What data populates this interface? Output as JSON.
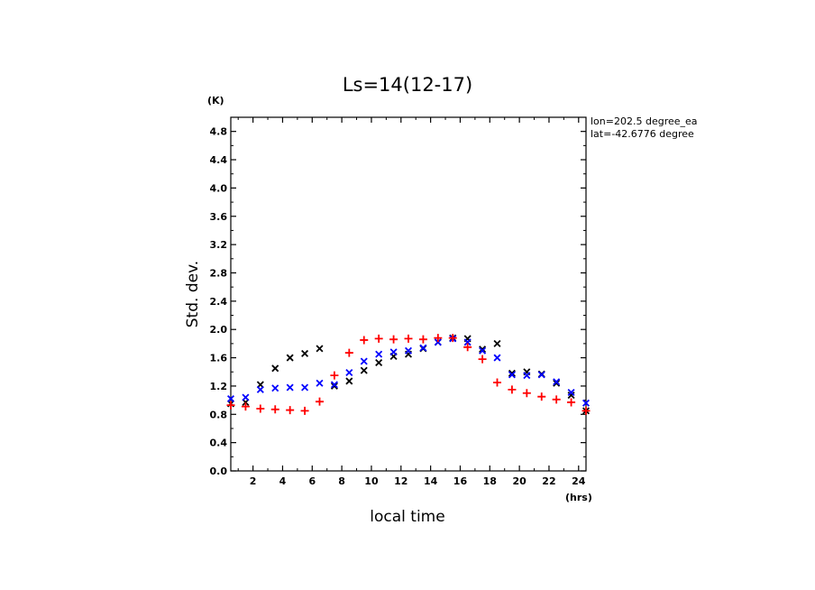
{
  "chart_data": {
    "type": "scatter",
    "title": "Ls=14(12-17)",
    "xlabel": "local time",
    "ylabel": "Std. dev.",
    "x_unit": "(hrs)",
    "y_unit": "(K)",
    "annotations": [
      "lon=202.5 degree_ea",
      "lat=-42.6776 degree"
    ],
    "xlim": [
      0.5,
      24.5
    ],
    "ylim": [
      0.0,
      5.0
    ],
    "x_ticks": [
      2,
      4,
      6,
      8,
      10,
      12,
      14,
      16,
      18,
      20,
      22,
      24
    ],
    "y_ticks": [
      0.0,
      0.4,
      0.8,
      1.2,
      1.6,
      2.0,
      2.4,
      2.8,
      3.2,
      3.6,
      4.0,
      4.4,
      4.8
    ],
    "x_tick_labels": [
      "2",
      "4",
      "6",
      "8",
      "10",
      "12",
      "14",
      "16",
      "18",
      "20",
      "22",
      "24"
    ],
    "y_tick_labels": [
      "0.0",
      "0.4",
      "0.8",
      "1.2",
      "1.6",
      "2.0",
      "2.4",
      "2.8",
      "3.2",
      "3.6",
      "4.0",
      "4.4",
      "4.8"
    ],
    "grid": false,
    "series": [
      {
        "color": "#000000",
        "marker": "x",
        "x": [
          0.5,
          1.5,
          2.5,
          3.5,
          4.5,
          5.5,
          6.5,
          7.5,
          8.5,
          9.5,
          10.5,
          11.5,
          12.5,
          13.5,
          14.5,
          15.5,
          16.5,
          17.5,
          18.5,
          19.5,
          20.5,
          21.5,
          22.5,
          23.5,
          24.5
        ],
        "values": [
          0.95,
          0.97,
          1.22,
          1.45,
          1.6,
          1.66,
          1.73,
          1.2,
          1.27,
          1.42,
          1.53,
          1.62,
          1.65,
          1.73,
          1.82,
          1.88,
          1.87,
          1.72,
          1.8,
          1.38,
          1.4,
          1.37,
          1.24,
          1.07,
          0.85
        ]
      },
      {
        "color": "#0000ff",
        "marker": "x",
        "x": [
          0.5,
          1.5,
          2.5,
          3.5,
          4.5,
          5.5,
          6.5,
          7.5,
          8.5,
          9.5,
          10.5,
          11.5,
          12.5,
          13.5,
          14.5,
          15.5,
          16.5,
          17.5,
          18.5,
          19.5,
          20.5,
          21.5,
          22.5,
          23.5,
          24.5
        ],
        "values": [
          1.02,
          1.04,
          1.15,
          1.17,
          1.18,
          1.18,
          1.24,
          1.22,
          1.39,
          1.55,
          1.65,
          1.68,
          1.7,
          1.74,
          1.82,
          1.87,
          1.82,
          1.7,
          1.6,
          1.36,
          1.35,
          1.36,
          1.26,
          1.11,
          0.96
        ]
      },
      {
        "color": "#ff0000",
        "marker": "+",
        "x": [
          0.5,
          1.5,
          2.5,
          3.5,
          4.5,
          5.5,
          6.5,
          7.5,
          8.5,
          9.5,
          10.5,
          11.5,
          12.5,
          13.5,
          14.5,
          15.5,
          16.5,
          17.5,
          18.5,
          19.5,
          20.5,
          21.5,
          22.5,
          23.5,
          24.5
        ],
        "values": [
          0.93,
          0.91,
          0.88,
          0.87,
          0.86,
          0.85,
          0.98,
          1.35,
          1.67,
          1.85,
          1.87,
          1.86,
          1.87,
          1.86,
          1.88,
          1.88,
          1.75,
          1.58,
          1.25,
          1.15,
          1.1,
          1.05,
          1.01,
          0.97,
          0.85
        ]
      }
    ]
  }
}
